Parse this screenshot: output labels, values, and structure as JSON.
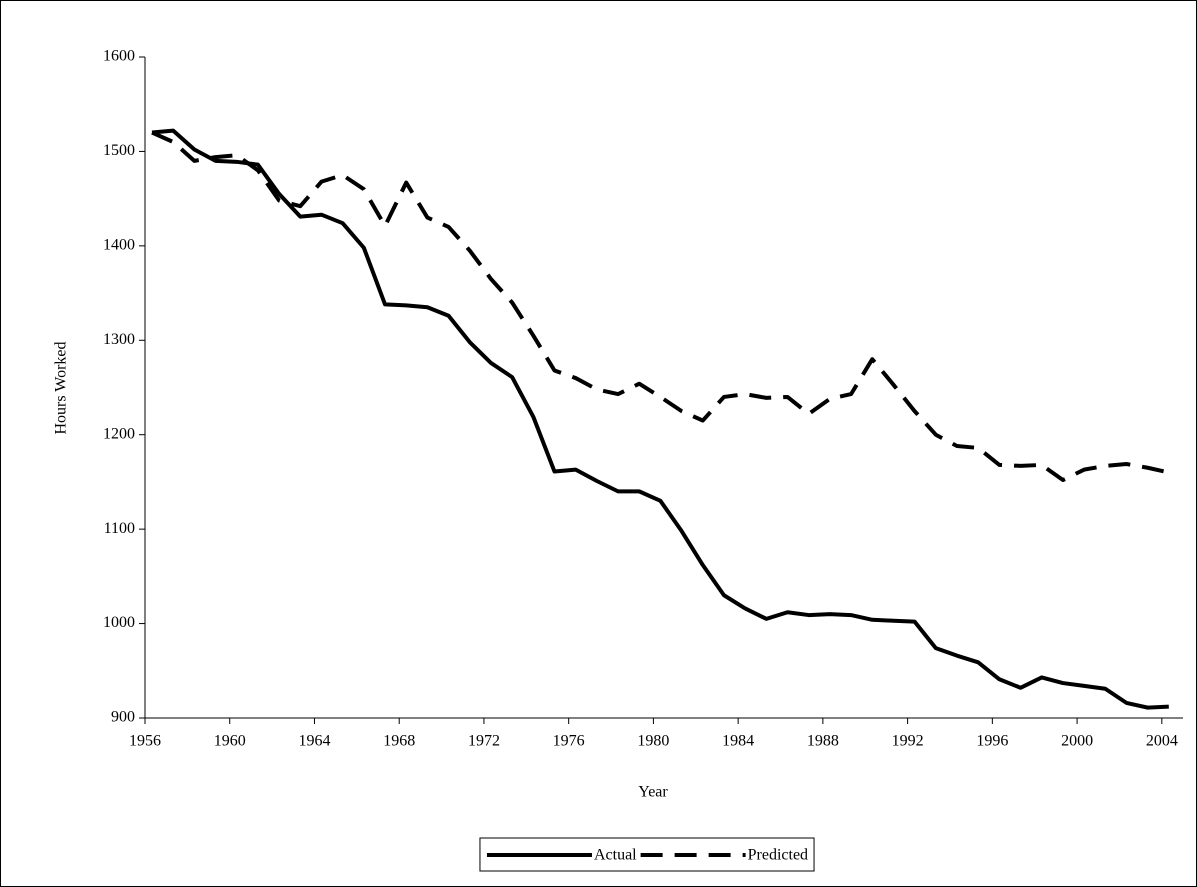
{
  "chart_data": {
    "type": "line",
    "x_label": "Year",
    "y_label": "Hours Worked",
    "x": [
      1956,
      1957,
      1958,
      1959,
      1960,
      1961,
      1962,
      1963,
      1964,
      1965,
      1966,
      1967,
      1968,
      1969,
      1970,
      1971,
      1972,
      1973,
      1974,
      1975,
      1976,
      1977,
      1978,
      1979,
      1980,
      1981,
      1982,
      1983,
      1984,
      1985,
      1986,
      1987,
      1988,
      1989,
      1990,
      1991,
      1992,
      1993,
      1994,
      1995,
      1996,
      1997,
      1998,
      1999,
      2000,
      2001,
      2002,
      2003,
      2004
    ],
    "series": [
      {
        "name": "Actual",
        "color": "#000000",
        "line_style": "solid",
        "values": [
          1520,
          1522,
          1502,
          1490,
          1489,
          1486,
          1455,
          1431,
          1433,
          1424,
          1398,
          1338,
          1337,
          1335,
          1326,
          1298,
          1276,
          1261,
          1219,
          1161,
          1163,
          1151,
          1140,
          1140,
          1130,
          1098,
          1062,
          1030,
          1016,
          1005,
          1012,
          1009,
          1010,
          1009,
          1004,
          1003,
          1002,
          974,
          966,
          959,
          941,
          932,
          943,
          937,
          934,
          931,
          916,
          911,
          912
        ]
      },
      {
        "name": "Predicted",
        "color": "#000000",
        "line_style": "dashed",
        "values": [
          1520,
          1510,
          1490,
          1494,
          1496,
          1480,
          1448,
          1442,
          1468,
          1475,
          1460,
          1421,
          1467,
          1430,
          1420,
          1395,
          1365,
          1340,
          1305,
          1268,
          1260,
          1248,
          1243,
          1254,
          1240,
          1225,
          1215,
          1240,
          1243,
          1239,
          1240,
          1222,
          1238,
          1243,
          1280,
          1253,
          1225,
          1200,
          1188,
          1186,
          1168,
          1167,
          1168,
          1152,
          1163,
          1167,
          1169,
          1165,
          1160
        ]
      }
    ],
    "xlim": [
      1956,
      2005
    ],
    "xticks": [
      1956,
      1960,
      1964,
      1968,
      1972,
      1976,
      1980,
      1984,
      1988,
      1992,
      1996,
      2000,
      2004
    ],
    "ylim": [
      900,
      1600
    ],
    "yticks": [
      900,
      1000,
      1100,
      1200,
      1300,
      1400,
      1500,
      1600
    ],
    "grid": false,
    "legend": "bottom"
  }
}
